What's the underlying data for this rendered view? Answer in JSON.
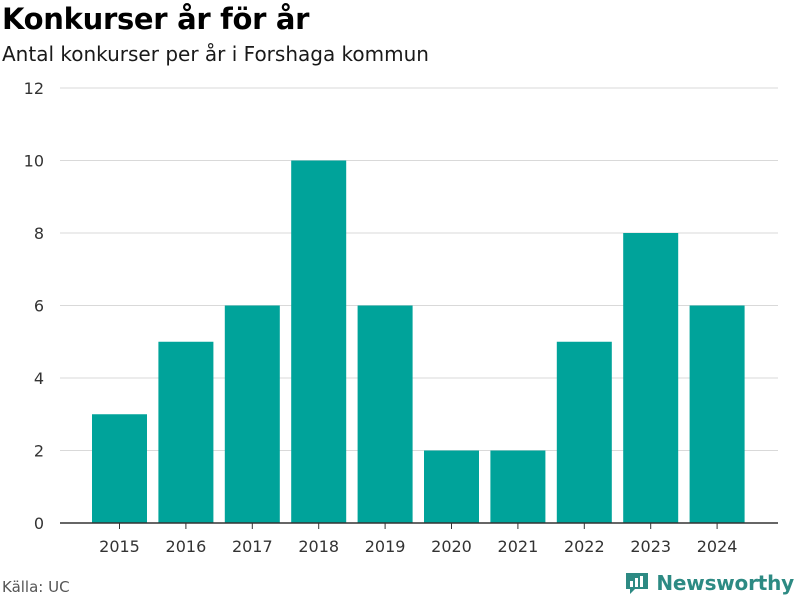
{
  "header": {
    "title": "Konkurser år för år",
    "subtitle": "Antal konkurser per år i Forshaga kommun"
  },
  "footer": {
    "source": "Källa: UC",
    "brand": "Newsworthy"
  },
  "colors": {
    "bar": "#00a39a",
    "brand": "#2d8a83",
    "grid": "#d9d9d9",
    "axis": "#333333"
  },
  "chart_data": {
    "type": "bar",
    "title": "Konkurser år för år",
    "subtitle": "Antal konkurser per år i Forshaga kommun",
    "categories": [
      "2015",
      "2016",
      "2017",
      "2018",
      "2019",
      "2020",
      "2021",
      "2022",
      "2023",
      "2024"
    ],
    "values": [
      3,
      5,
      6,
      10,
      6,
      2,
      2,
      5,
      8,
      6
    ],
    "ylim": [
      0,
      12
    ],
    "yticks": [
      0,
      2,
      4,
      6,
      8,
      10,
      12
    ],
    "grid": true,
    "legend": "none"
  }
}
